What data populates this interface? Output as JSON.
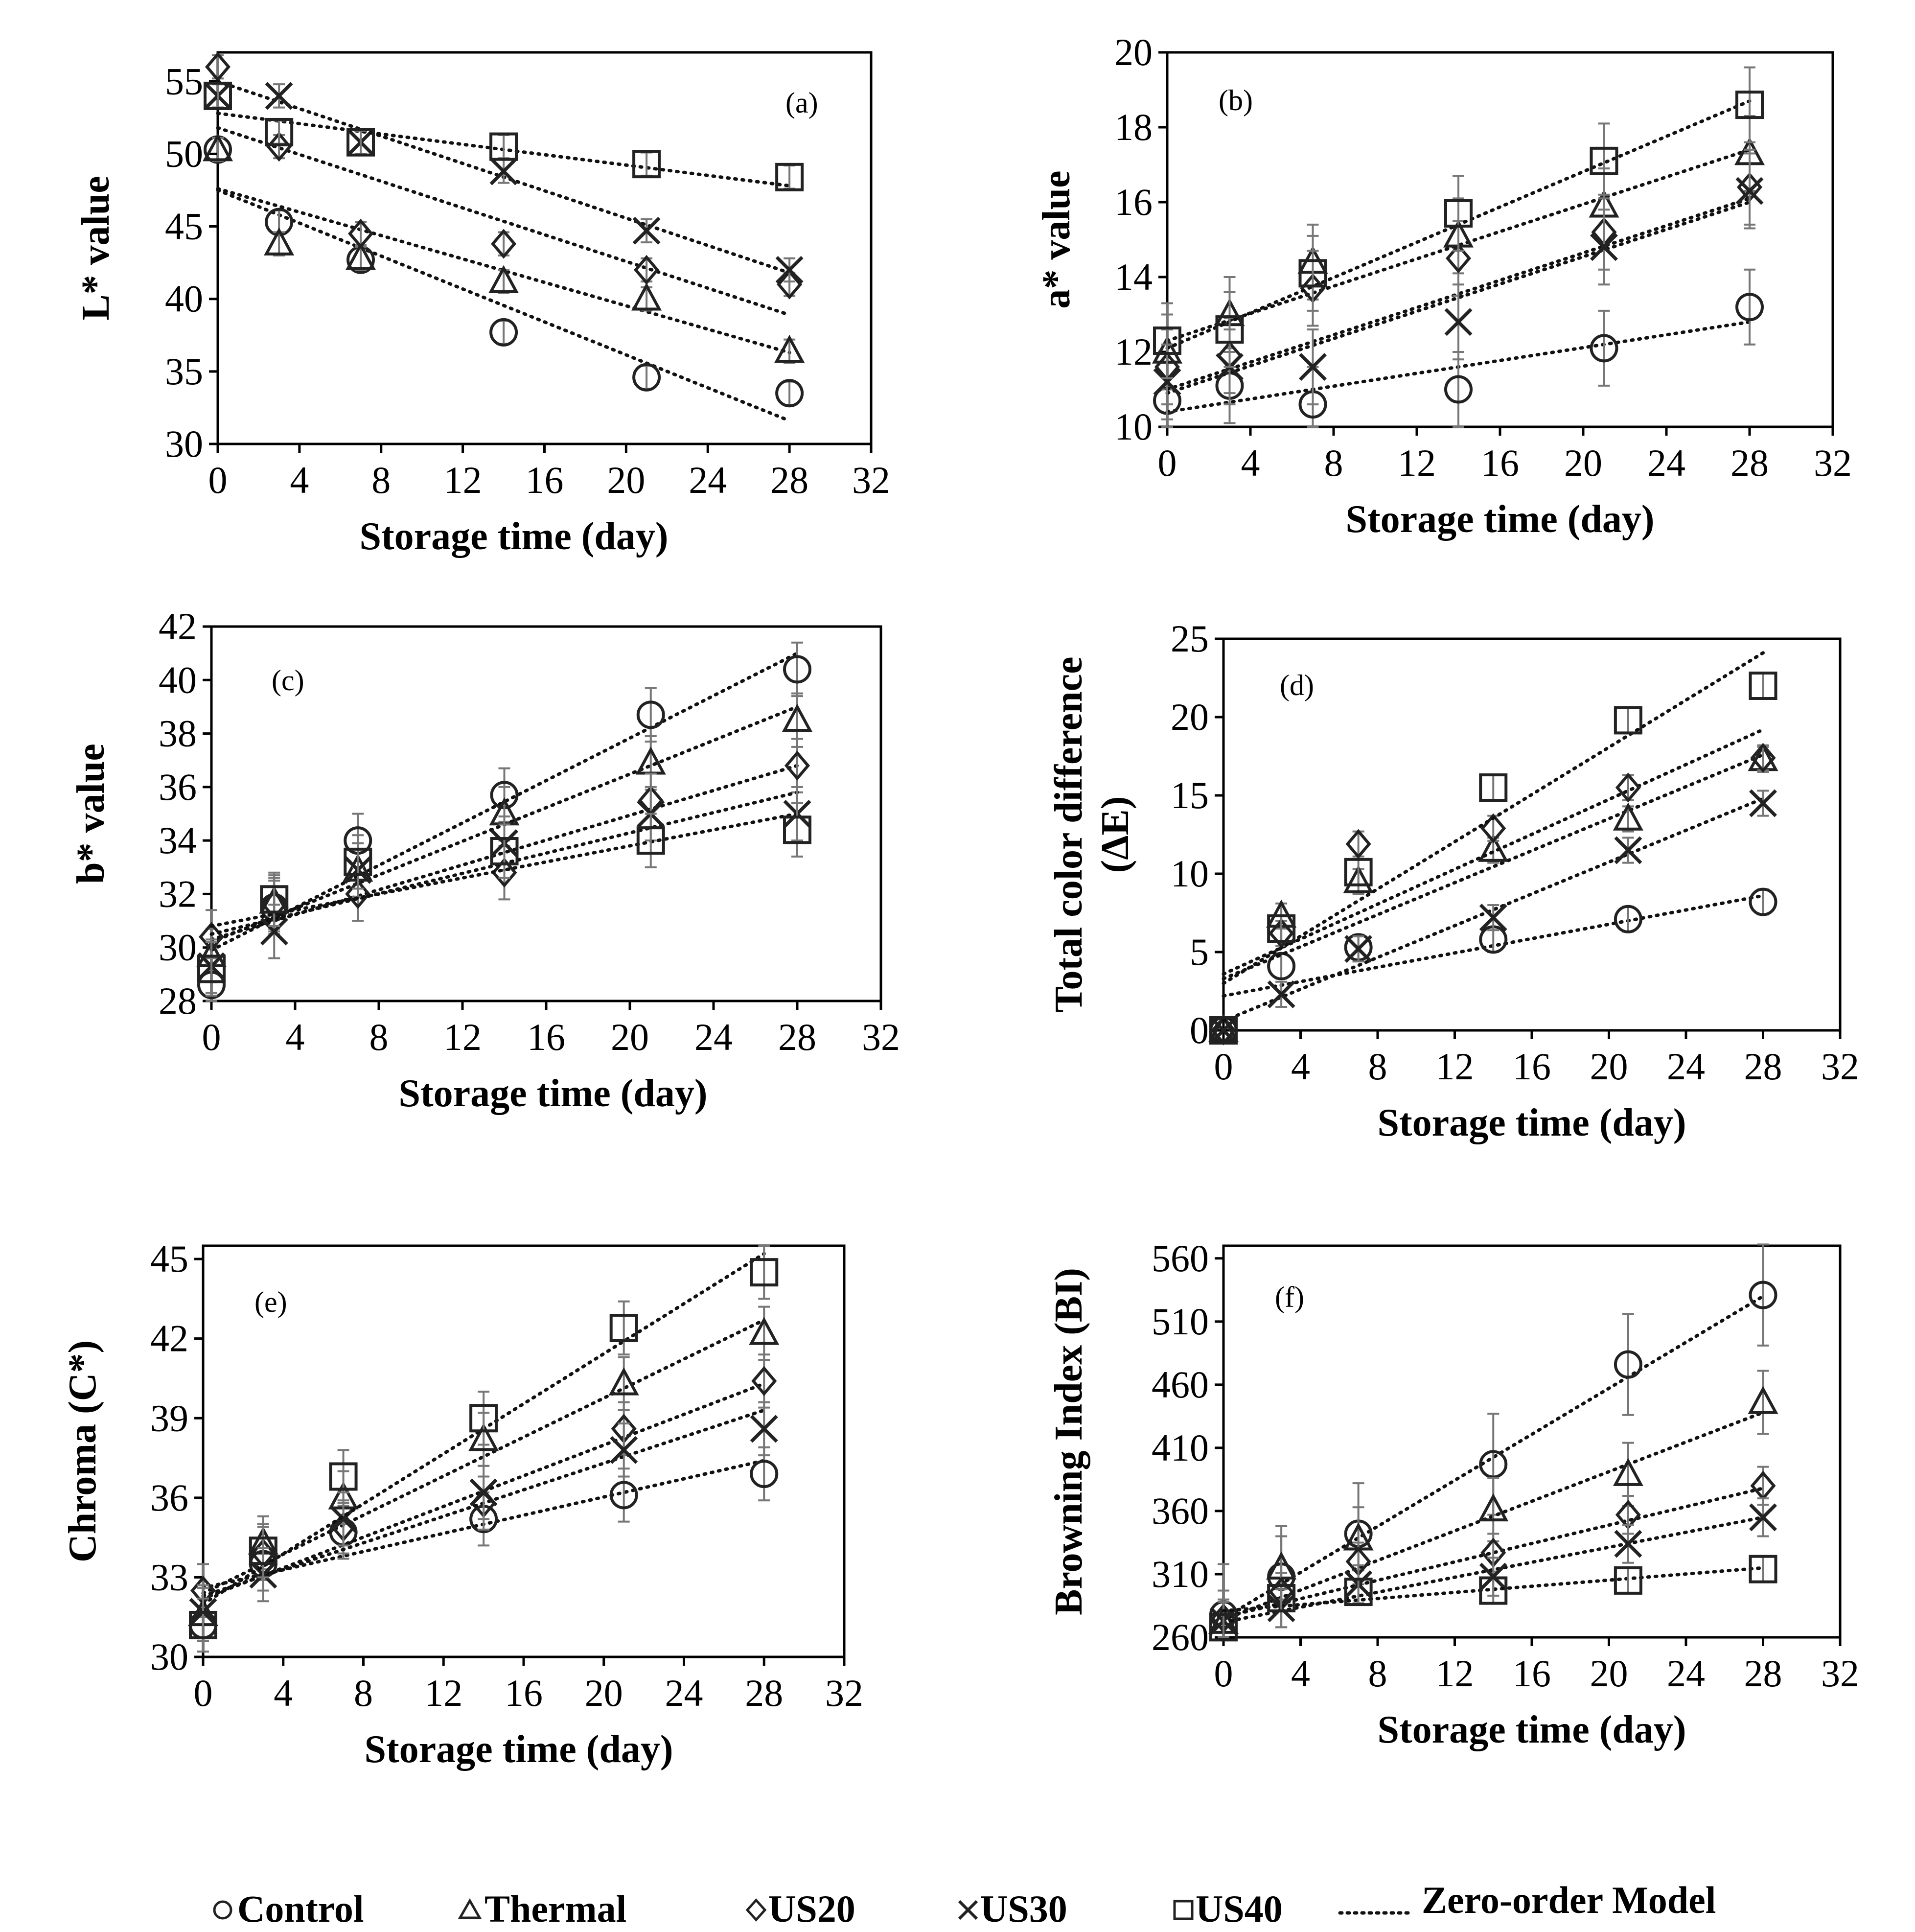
{
  "figure": {
    "series_names": [
      "Control",
      "Thermal",
      "US20",
      "US30",
      "US40"
    ],
    "model_label": "Zero-order Model",
    "marker_shapes": [
      "circle",
      "triangle",
      "diamond",
      "cross",
      "square"
    ],
    "colors": {
      "marker": "#222222",
      "error_bar": "#777777",
      "fit_line": "#111111"
    }
  },
  "legend": {
    "control": "Control",
    "thermal": "Thermal",
    "us20": "US20",
    "us30": "US30",
    "us40": "US40",
    "model": "Zero-order Model"
  },
  "chart_data": [
    {
      "id": "a",
      "panel_label": "(a)",
      "type": "scatter",
      "xlabel": "Storage time (day)",
      "ylabel": "L* value",
      "xlim": [
        0,
        32
      ],
      "ylim": [
        30,
        57
      ],
      "xticks": [
        0,
        4,
        8,
        12,
        16,
        20,
        24,
        28,
        32
      ],
      "yticks": [
        30,
        35,
        40,
        45,
        50,
        55
      ],
      "x": [
        0,
        3,
        7,
        14,
        21,
        28
      ],
      "series": [
        {
          "name": "Control",
          "values": [
            50.3,
            45.3,
            42.7,
            37.7,
            34.6,
            33.5
          ],
          "err": [
            0.8,
            0.8,
            0.8,
            0.8,
            0.8,
            0.8
          ],
          "fit": [
            47.5,
            31.6
          ]
        },
        {
          "name": "Thermal",
          "values": [
            50.3,
            43.8,
            42.8,
            41.2,
            40.0,
            36.4
          ],
          "err": [
            0.8,
            0.8,
            0.8,
            0.8,
            0.8,
            0.8
          ],
          "fit": [
            47.6,
            36.3
          ]
        },
        {
          "name": "US20",
          "values": [
            56.0,
            50.5,
            44.5,
            43.8,
            42.0,
            41.0
          ],
          "err": [
            0.8,
            0.8,
            0.8,
            0.8,
            0.8,
            0.8
          ],
          "fit": [
            51.8,
            38.9
          ]
        },
        {
          "name": "US30",
          "values": [
            54.0,
            54.0,
            50.8,
            48.8,
            44.7,
            42.0
          ],
          "err": [
            0.8,
            0.8,
            0.8,
            0.8,
            0.8,
            0.8
          ],
          "fit": [
            55.0,
            41.8
          ]
        },
        {
          "name": "US40",
          "values": [
            54.0,
            51.5,
            50.8,
            50.5,
            49.3,
            48.4
          ],
          "err": [
            0.8,
            0.8,
            0.8,
            0.8,
            0.8,
            0.8
          ],
          "fit": [
            52.8,
            47.8
          ]
        }
      ]
    },
    {
      "id": "b",
      "panel_label": "(b)",
      "type": "scatter",
      "xlabel": "Storage time (day)",
      "ylabel": "a* value",
      "xlim": [
        0,
        32
      ],
      "ylim": [
        10,
        20
      ],
      "xticks": [
        0,
        4,
        8,
        12,
        16,
        20,
        24,
        28,
        32
      ],
      "yticks": [
        10,
        12,
        14,
        16,
        18,
        20
      ],
      "x": [
        0,
        3,
        7,
        14,
        21,
        28
      ],
      "series": [
        {
          "name": "Control",
          "values": [
            10.7,
            11.1,
            10.6,
            11.0,
            12.1,
            13.2
          ],
          "err": [
            1.0,
            1.0,
            1.0,
            1.0,
            1.0,
            1.0
          ],
          "fit": [
            10.4,
            12.8
          ]
        },
        {
          "name": "Thermal",
          "values": [
            12.0,
            13.0,
            14.4,
            15.1,
            15.9,
            17.3
          ],
          "err": [
            1.0,
            1.0,
            1.0,
            1.0,
            1.0,
            1.0
          ],
          "fit": [
            12.3,
            17.4
          ]
        },
        {
          "name": "US20",
          "values": [
            11.6,
            11.9,
            13.7,
            14.5,
            15.2,
            16.4
          ],
          "err": [
            1.0,
            1.0,
            1.0,
            1.0,
            1.0,
            1.0
          ],
          "fit": [
            11.0,
            16.1
          ]
        },
        {
          "name": "US30",
          "values": [
            11.2,
            11.6,
            11.6,
            12.8,
            14.8,
            16.3
          ],
          "err": [
            1.0,
            1.0,
            1.0,
            1.0,
            1.0,
            1.0
          ],
          "fit": [
            10.9,
            16.0
          ]
        },
        {
          "name": "US40",
          "values": [
            12.3,
            12.6,
            14.1,
            15.7,
            17.1,
            18.6
          ],
          "err": [
            1.0,
            1.0,
            1.0,
            1.0,
            1.0,
            1.0
          ],
          "fit": [
            12.1,
            18.7
          ]
        }
      ]
    },
    {
      "id": "c",
      "panel_label": "(c)",
      "type": "scatter",
      "xlabel": "Storage time (day)",
      "ylabel": "b* value",
      "xlim": [
        0,
        32
      ],
      "ylim": [
        28,
        42
      ],
      "xticks": [
        0,
        4,
        8,
        12,
        16,
        20,
        24,
        28,
        32
      ],
      "yticks": [
        28,
        30,
        32,
        34,
        36,
        38,
        40,
        42
      ],
      "x": [
        0,
        3,
        7,
        14,
        21,
        28
      ],
      "series": [
        {
          "name": "Control",
          "values": [
            28.6,
            31.5,
            34.0,
            35.7,
            38.7,
            40.4
          ],
          "err": [
            1.0,
            1.0,
            1.0,
            1.0,
            1.0,
            1.0
          ],
          "fit": [
            29.9,
            41.0
          ]
        },
        {
          "name": "Thermal",
          "values": [
            29.7,
            31.7,
            32.9,
            35.0,
            36.9,
            38.5
          ],
          "err": [
            1.0,
            1.0,
            1.0,
            1.0,
            1.0,
            1.0
          ],
          "fit": [
            30.2,
            39.0
          ]
        },
        {
          "name": "US20",
          "values": [
            30.4,
            31.6,
            32.0,
            32.8,
            35.5,
            36.8
          ],
          "err": [
            1.0,
            1.0,
            1.0,
            1.0,
            1.0,
            1.0
          ],
          "fit": [
            30.3,
            36.8
          ]
        },
        {
          "name": "US30",
          "values": [
            29.3,
            30.6,
            32.9,
            33.9,
            35.0,
            35.0
          ],
          "err": [
            1.0,
            1.0,
            1.0,
            1.0,
            1.0,
            1.0
          ],
          "fit": [
            30.5,
            35.8
          ]
        },
        {
          "name": "US40",
          "values": [
            29.2,
            31.8,
            33.2,
            33.6,
            34.0,
            34.4
          ],
          "err": [
            1.0,
            1.0,
            1.0,
            1.0,
            1.0,
            1.0
          ],
          "fit": [
            30.8,
            35.0
          ]
        }
      ]
    },
    {
      "id": "d",
      "panel_label": "(d)",
      "type": "scatter",
      "xlabel": "Storage time (day)",
      "ylabel": "Total color difference (ΔE)",
      "ylabel_lines": [
        "Total color difference",
        "(ΔE)"
      ],
      "xlim": [
        0,
        32
      ],
      "ylim": [
        0,
        25
      ],
      "xticks": [
        0,
        4,
        8,
        12,
        16,
        20,
        24,
        28,
        32
      ],
      "yticks": [
        0,
        5,
        10,
        15,
        20,
        25
      ],
      "x": [
        0,
        3,
        7,
        14,
        21,
        28
      ],
      "series": [
        {
          "name": "Control",
          "values": [
            0,
            4.1,
            5.3,
            5.8,
            7.1,
            8.2
          ],
          "err": [
            0.8,
            0.8,
            0.8,
            0.8,
            0.8,
            0.8
          ],
          "fit": [
            2.2,
            8.6
          ]
        },
        {
          "name": "Thermal",
          "values": [
            0,
            7.3,
            9.5,
            11.5,
            13.5,
            17.3
          ],
          "err": [
            0.8,
            0.8,
            0.8,
            0.8,
            0.8,
            0.8
          ],
          "fit": [
            3.3,
            17.6
          ]
        },
        {
          "name": "US20",
          "values": [
            0,
            6.2,
            11.9,
            12.9,
            15.5,
            17.4
          ],
          "err": [
            0.8,
            0.8,
            0.8,
            0.8,
            0.8,
            0.8
          ],
          "fit": [
            3.6,
            19.2
          ]
        },
        {
          "name": "US30",
          "values": [
            0,
            2.3,
            5.2,
            7.2,
            11.5,
            14.5
          ],
          "err": [
            0.8,
            0.8,
            0.8,
            0.8,
            0.8,
            0.8
          ],
          "fit": [
            0.6,
            14.8
          ]
        },
        {
          "name": "US40",
          "values": [
            0,
            6.5,
            10.1,
            15.5,
            19.8,
            22.0
          ],
          "err": [
            0.8,
            0.8,
            0.8,
            0.8,
            0.8,
            0.8
          ],
          "fit": [
            3.0,
            24.1
          ]
        }
      ]
    },
    {
      "id": "e",
      "panel_label": "(e)",
      "type": "scatter",
      "xlabel": "Storage time (day)",
      "ylabel": "Chroma (C*)",
      "xlim": [
        0,
        32
      ],
      "ylim": [
        30,
        45.5
      ],
      "xticks": [
        0,
        4,
        8,
        12,
        16,
        20,
        24,
        28,
        32
      ],
      "yticks": [
        30,
        33,
        36,
        39,
        42,
        45
      ],
      "x": [
        0,
        3,
        7,
        14,
        21,
        28
      ],
      "series": [
        {
          "name": "Control",
          "values": [
            31.2,
            33.5,
            34.7,
            35.2,
            36.1,
            36.9
          ],
          "err": [
            1.0,
            1.0,
            1.0,
            1.0,
            1.0,
            1.0
          ],
          "fit": [
            32.6,
            37.4
          ]
        },
        {
          "name": "Thermal",
          "values": [
            31.6,
            34.3,
            36.0,
            38.2,
            40.3,
            42.2
          ],
          "err": [
            1.0,
            1.0,
            1.0,
            1.0,
            1.0,
            1.0
          ],
          "fit": [
            32.4,
            42.7
          ]
        },
        {
          "name": "US20",
          "values": [
            32.5,
            33.9,
            34.9,
            35.8,
            38.6,
            40.4
          ],
          "err": [
            1.0,
            1.0,
            1.0,
            1.0,
            1.0,
            1.0
          ],
          "fit": [
            32.2,
            40.3
          ]
        },
        {
          "name": "US30",
          "values": [
            31.7,
            33.1,
            35.2,
            36.2,
            37.8,
            38.6
          ],
          "err": [
            1.0,
            1.0,
            1.0,
            1.0,
            1.0,
            1.0
          ],
          "fit": [
            32.3,
            39.3
          ]
        },
        {
          "name": "US40",
          "values": [
            31.2,
            34.0,
            36.8,
            39.0,
            42.4,
            44.5
          ],
          "err": [
            1.0,
            1.0,
            1.0,
            1.0,
            1.0,
            1.0
          ],
          "fit": [
            32.0,
            45.2
          ]
        }
      ]
    },
    {
      "id": "f",
      "panel_label": "(f)",
      "type": "scatter",
      "xlabel": "Storage time (day)",
      "ylabel": "Browning Index (BI)",
      "xlim": [
        0,
        32
      ],
      "ylim": [
        260,
        570
      ],
      "xticks": [
        0,
        4,
        8,
        12,
        16,
        20,
        24,
        28,
        32
      ],
      "yticks": [
        260,
        310,
        360,
        410,
        460,
        510,
        560
      ],
      "x": [
        0,
        3,
        7,
        14,
        21,
        28
      ],
      "series": [
        {
          "name": "Control",
          "values": [
            278,
            308,
            342,
            397,
            476,
            531
          ],
          "err": [
            40,
            40,
            40,
            40,
            40,
            40
          ],
          "fit": [
            275,
            530
          ]
        },
        {
          "name": "Thermal",
          "values": [
            272,
            315,
            338,
            361,
            389,
            446
          ],
          "err": [
            25,
            25,
            25,
            25,
            25,
            25
          ],
          "fit": [
            274,
            438
          ]
        },
        {
          "name": "US20",
          "values": [
            275,
            296,
            320,
            327,
            357,
            380
          ],
          "err": [
            15,
            15,
            15,
            15,
            15,
            15
          ],
          "fit": [
            276,
            378
          ]
        },
        {
          "name": "US30",
          "values": [
            273,
            283,
            302,
            308,
            334,
            355
          ],
          "err": [
            15,
            15,
            15,
            15,
            15,
            15
          ],
          "fit": [
            272,
            355
          ]
        },
        {
          "name": "US40",
          "values": [
            268,
            291,
            296,
            297,
            305,
            314
          ],
          "err": [
            10,
            10,
            10,
            10,
            10,
            10
          ],
          "fit": [
            281,
            315
          ]
        }
      ]
    }
  ]
}
